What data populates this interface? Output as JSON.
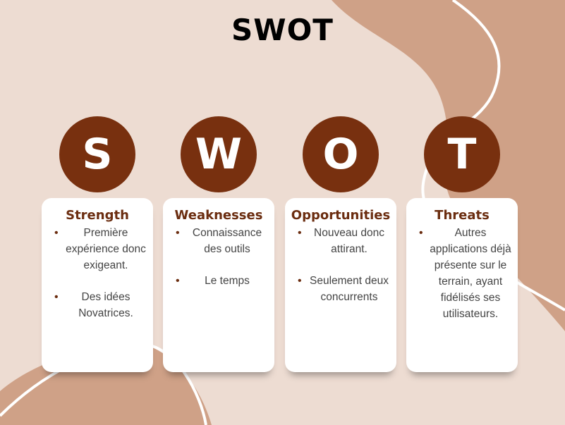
{
  "title": "SWOT",
  "colors": {
    "background": "#EDDCD2",
    "blob": "#CFA187",
    "circle": "#78300F",
    "heading": "#6B2D10",
    "card": "#FFFFFF"
  },
  "columns": [
    {
      "letter": "S",
      "heading": "Strength",
      "items": [
        "Première expérience donc exigeant.",
        "Des idées Novatrices."
      ]
    },
    {
      "letter": "W",
      "heading": "Weaknesses",
      "items": [
        "Connaissance des outils",
        "Le temps"
      ]
    },
    {
      "letter": "O",
      "heading": "Opportunities",
      "items": [
        "Nouveau donc attirant.",
        "Seulement deux concurrents"
      ]
    },
    {
      "letter": "T",
      "heading": "Threats",
      "items": [
        "Autres applications déjà présente sur le terrain, ayant fidélisés ses utilisateurs."
      ]
    }
  ]
}
